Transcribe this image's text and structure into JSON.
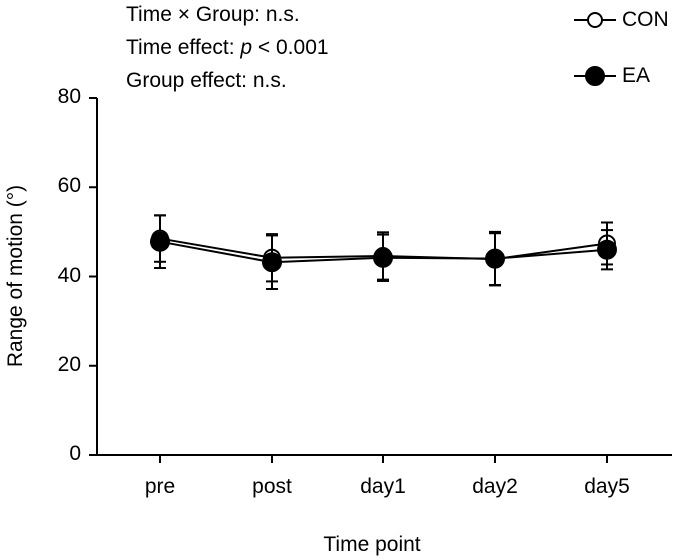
{
  "annotations": {
    "interaction_label": "Time × Group: n.s.",
    "time_label_prefix": "Time effect: ",
    "time_label_p": "p",
    "time_label_suffix": " < 0.001",
    "group_label": "Group effect: n.s."
  },
  "chart_data": {
    "type": "line",
    "title": "",
    "xlabel": "Time point",
    "ylabel": "Range of motion (°)",
    "categories": [
      "pre",
      "post",
      "day1",
      "day2",
      "day5"
    ],
    "ylim": [
      0,
      80
    ],
    "yticks": [
      "0",
      "20",
      "40",
      "60",
      "80"
    ],
    "grid": false,
    "legend_position": "top-right",
    "series": [
      {
        "name": "CON",
        "marker": "open-circle",
        "values": [
          48.5,
          44.2,
          44.6,
          43.9,
          47.4
        ],
        "error": [
          5.2,
          5.3,
          5.3,
          5.8,
          4.7
        ]
      },
      {
        "name": "EA",
        "marker": "filled-circle",
        "values": [
          47.8,
          43.2,
          44.2,
          44.0,
          46.0
        ],
        "error": [
          5.9,
          6.0,
          5.2,
          6.0,
          4.4
        ]
      }
    ]
  }
}
